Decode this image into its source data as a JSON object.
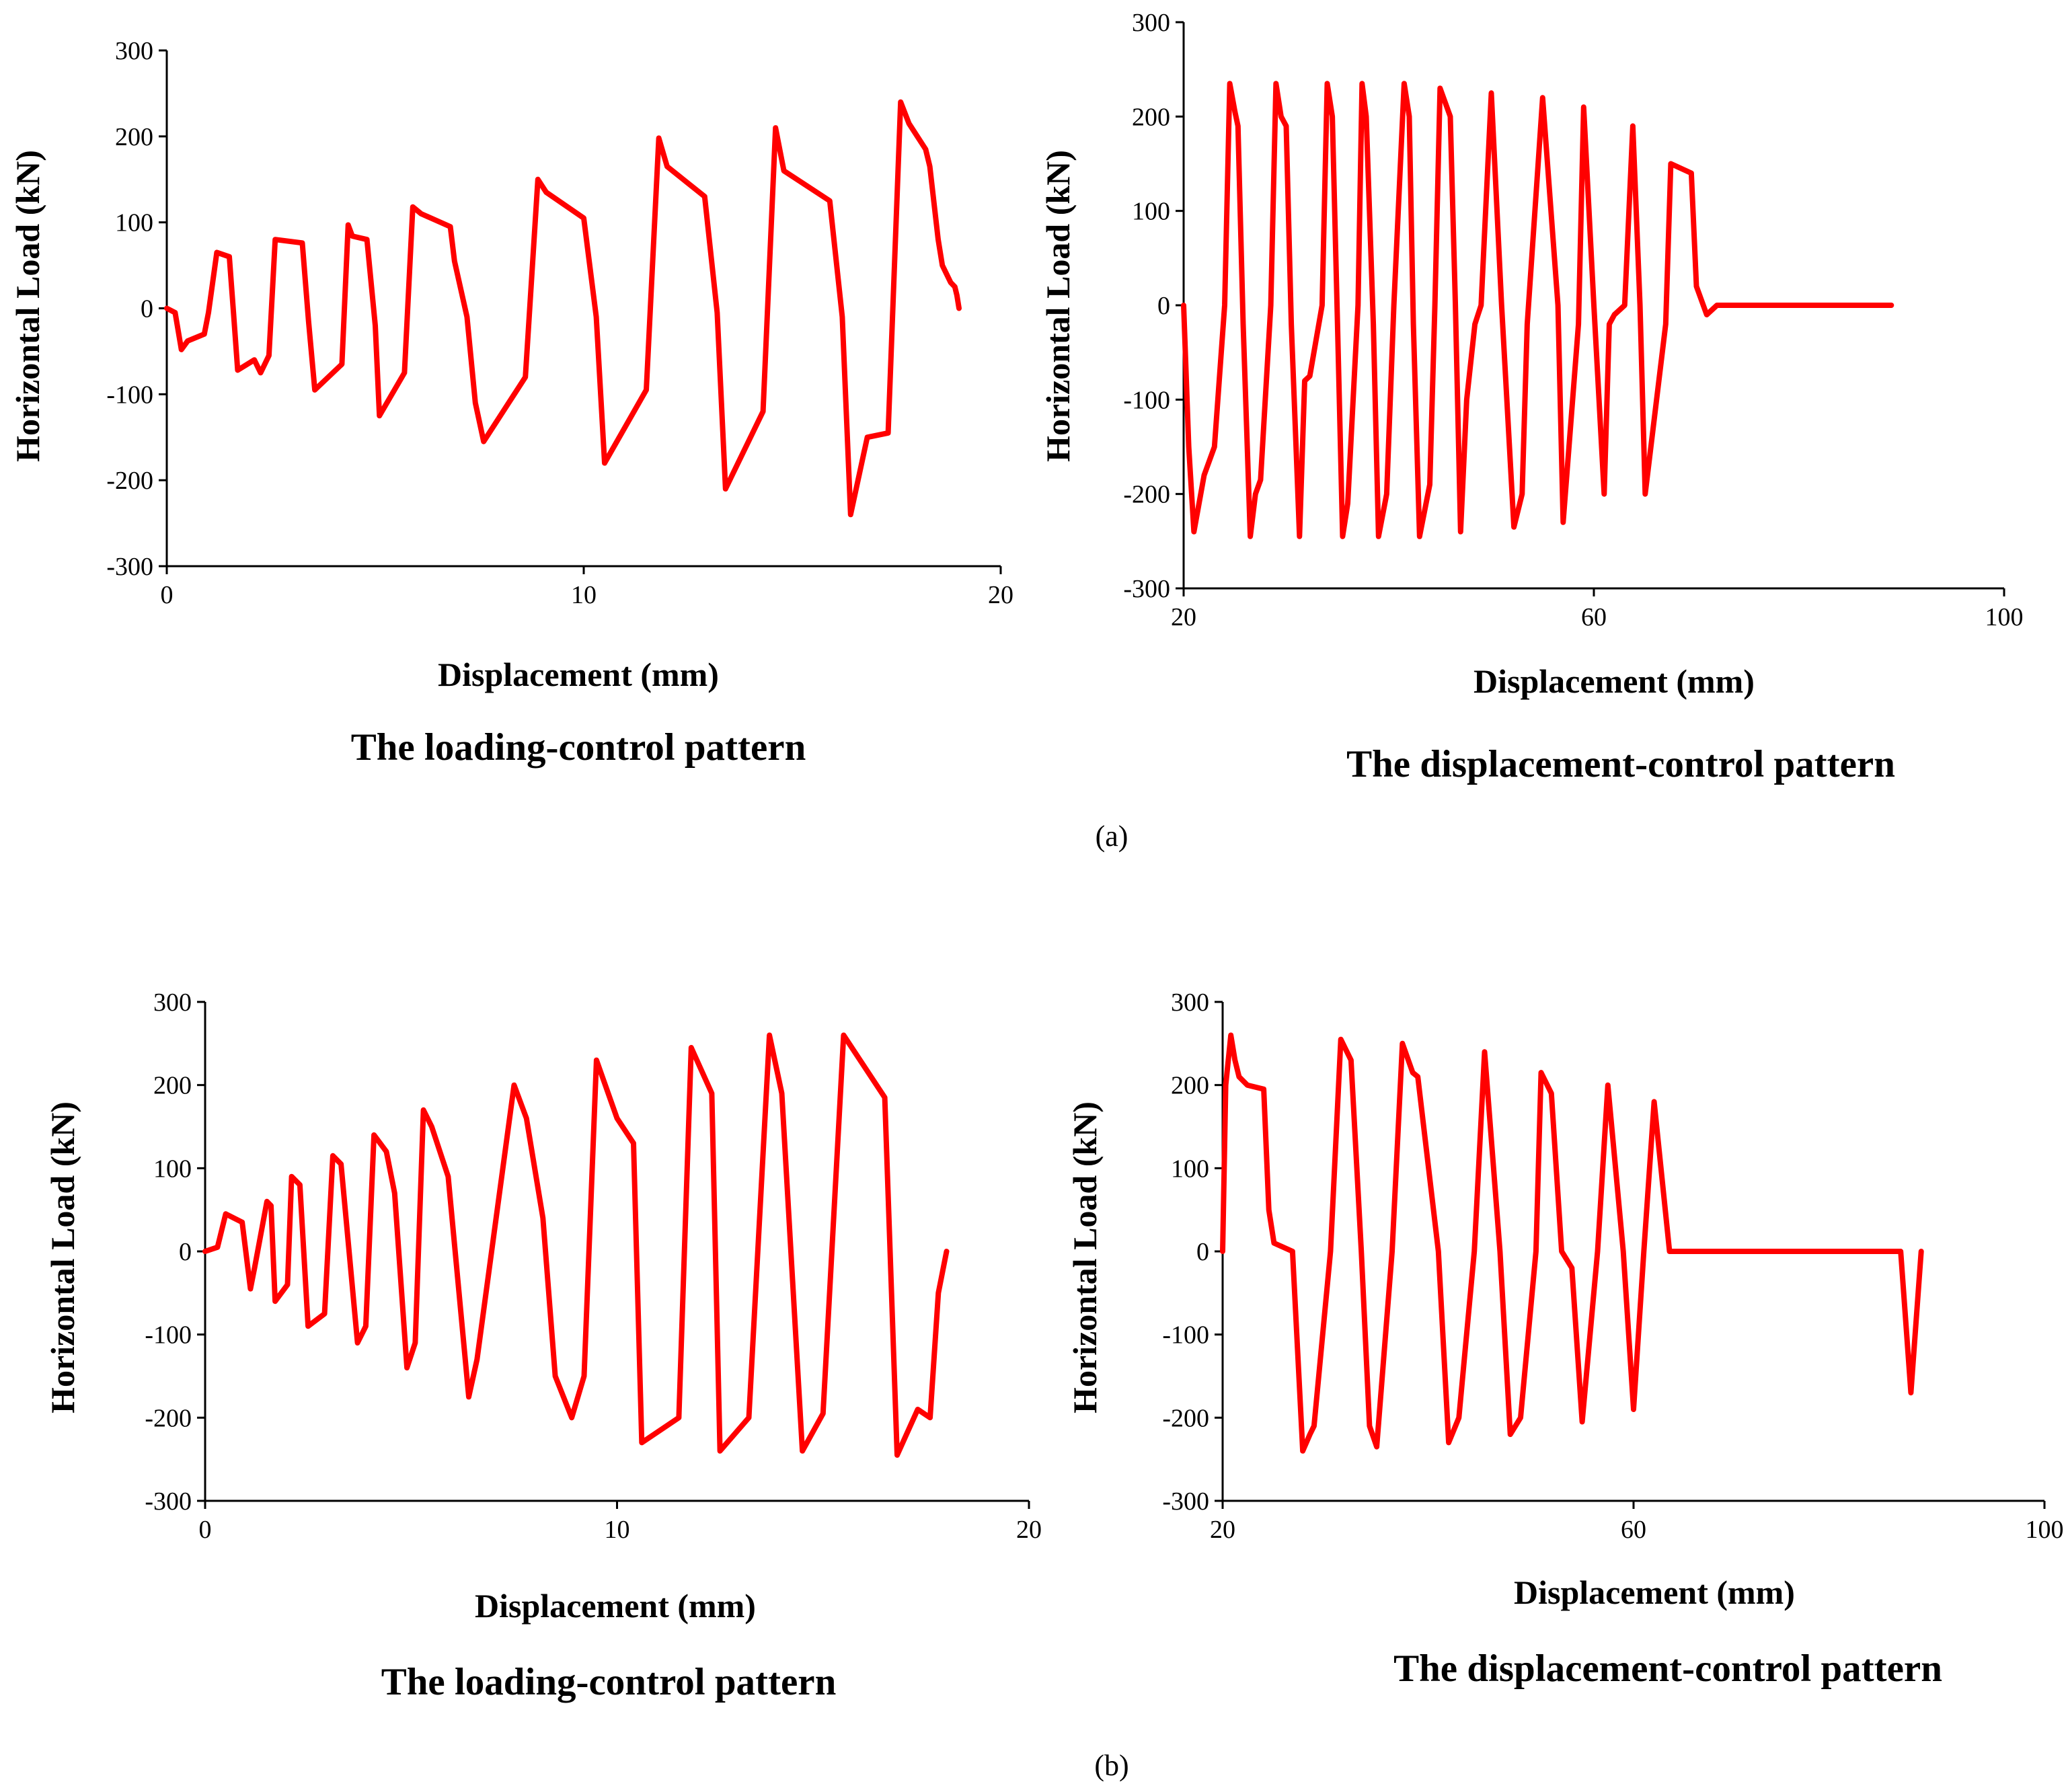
{
  "colors": {
    "series": "#ff0000",
    "axis": "#000000"
  },
  "sublabels": [
    "(a)",
    "(b)"
  ],
  "chart_data": [
    {
      "type": "line",
      "panel": "a-left",
      "caption": "The loading-control pattern",
      "xlabel": "Displacement (mm)",
      "ylabel": "Horizontal Load (kN)",
      "xlim": [
        0,
        20
      ],
      "ylim": [
        -300,
        300
      ],
      "xticks": [
        "0",
        "10",
        "20"
      ],
      "yticks": [
        "300",
        "200",
        "100",
        "0",
        "-100",
        "-200",
        "-300"
      ],
      "grid": false,
      "series": [
        {
          "name": "Horizontal Load",
          "x": [
            0,
            0.2,
            0.35,
            0.5,
            0.9,
            1.0,
            1.2,
            1.5,
            1.6,
            1.7,
            2.1,
            2.25,
            2.45,
            2.6,
            3.25,
            3.4,
            3.55,
            4.2,
            4.35,
            4.45,
            4.8,
            5.0,
            5.1,
            5.7,
            5.9,
            6.1,
            6.8,
            6.9,
            7.2,
            7.4,
            7.6,
            8.6,
            8.9,
            9.1,
            10.0,
            10.3,
            10.5,
            11.5,
            11.8,
            12.0,
            12.9,
            13.2,
            13.4,
            14.3,
            14.6,
            14.8,
            15.9,
            16.2,
            16.4,
            16.8,
            17.3,
            17.6,
            17.8,
            18.2,
            18.3,
            18.5,
            18.6,
            18.7,
            18.8,
            18.9,
            18.95,
            19.0
          ],
          "y": [
            0,
            -5,
            -48,
            -38,
            -30,
            -5,
            65,
            60,
            -5,
            -72,
            -60,
            -75,
            -55,
            80,
            76,
            -15,
            -95,
            -65,
            97,
            84,
            80,
            -20,
            -125,
            -75,
            118,
            110,
            95,
            55,
            -10,
            -110,
            -155,
            -80,
            150,
            135,
            105,
            -10,
            -180,
            -95,
            198,
            165,
            130,
            -5,
            -210,
            -120,
            210,
            160,
            125,
            -10,
            -240,
            -150,
            -145,
            240,
            215,
            185,
            165,
            80,
            50,
            40,
            30,
            25,
            15,
            0
          ]
        }
      ]
    },
    {
      "type": "line",
      "panel": "a-right",
      "caption": "The displacement-control pattern",
      "xlabel": "Displacement (mm)",
      "ylabel": "Horizontal Load (kN)",
      "xlim": [
        20,
        100
      ],
      "ylim": [
        -300,
        300
      ],
      "xticks": [
        "20",
        "60",
        "100"
      ],
      "yticks": [
        "300",
        "200",
        "100",
        "0",
        "-100",
        "-200",
        "-300"
      ],
      "grid": false,
      "series": [
        {
          "name": "Horizontal Load",
          "x": [
            20.0,
            20.5,
            21.0,
            22.0,
            23.0,
            24.0,
            24.5,
            25.0,
            25.3,
            25.8,
            26.5,
            27.0,
            27.5,
            28.5,
            29.0,
            29.5,
            30.0,
            30.5,
            31.3,
            31.8,
            32.3,
            33.5,
            34.0,
            34.5,
            35.0,
            35.5,
            36.0,
            37.0,
            37.4,
            37.8,
            38.5,
            39.0,
            39.8,
            40.5,
            41.5,
            42.0,
            42.4,
            43.0,
            44.0,
            44.5,
            45.0,
            46.0,
            46.5,
            47.0,
            47.6,
            48.4,
            49.0,
            50.0,
            51.0,
            52.2,
            53.0,
            53.5,
            55.0,
            56.5,
            57.0,
            58.5,
            59.0,
            60.0,
            61.0,
            61.5,
            62.0,
            63.0,
            63.8,
            64.5,
            65.0,
            67.0,
            67.5,
            69.5,
            70.0,
            71.0,
            72.0,
            74.0,
            74.5,
            76.0,
            77.0,
            79.0,
            79.5,
            80.0,
            81.0,
            82.0,
            84.0,
            85.0,
            86.0,
            86.5,
            87.0,
            87.5,
            88.0,
            88.5,
            89.0,
            89.0
          ],
          "y": [
            0,
            -150,
            -240,
            -180,
            -150,
            0,
            235,
            205,
            190,
            -20,
            -245,
            -200,
            -185,
            0,
            235,
            200,
            190,
            -20,
            -245,
            -80,
            -75,
            0,
            235,
            200,
            -20,
            -245,
            -210,
            0,
            235,
            200,
            -20,
            -245,
            -200,
            0,
            235,
            200,
            -20,
            -245,
            -190,
            0,
            230,
            200,
            0,
            -240,
            -100,
            -20,
            0,
            225,
            0,
            -235,
            -200,
            -20,
            220,
            0,
            -230,
            -20,
            210,
            0,
            -200,
            -20,
            -10,
            0,
            190,
            0,
            -200,
            -20,
            150,
            140,
            20,
            -10,
            0,
            0,
            0,
            0,
            0,
            0,
            0,
            0,
            0,
            0,
            0,
            0,
            0,
            0,
            0,
            0,
            0,
            0,
            0,
            0
          ]
        }
      ]
    },
    {
      "type": "line",
      "panel": "b-left",
      "caption": "The loading-control pattern",
      "xlabel": "Displacement (mm)",
      "ylabel": "Horizontal Load (kN)",
      "xlim": [
        0,
        20
      ],
      "ylim": [
        -300,
        300
      ],
      "xticks": [
        "0",
        "10",
        "20"
      ],
      "yticks": [
        "300",
        "200",
        "100",
        "0",
        "-100",
        "-200",
        "-300"
      ],
      "grid": false,
      "series": [
        {
          "name": "Horizontal Load",
          "x": [
            0,
            0.3,
            0.5,
            0.9,
            1.1,
            1.2,
            1.5,
            1.6,
            1.7,
            2.0,
            2.1,
            2.3,
            2.5,
            2.9,
            3.1,
            3.3,
            3.7,
            3.9,
            4.1,
            4.4,
            4.6,
            4.9,
            5.1,
            5.3,
            5.5,
            5.9,
            6.4,
            6.6,
            7.5,
            7.8,
            8.2,
            8.5,
            8.9,
            9.2,
            9.5,
            10.0,
            10.4,
            10.6,
            11.5,
            11.8,
            12.3,
            12.5,
            13.2,
            13.7,
            14.0,
            14.5,
            15.0,
            15.5,
            16.5,
            16.8,
            17.3,
            17.6,
            17.8,
            18.0
          ],
          "y": [
            0,
            5,
            45,
            35,
            -45,
            -20,
            60,
            55,
            -60,
            -40,
            90,
            80,
            -90,
            -75,
            115,
            105,
            -110,
            -90,
            140,
            120,
            70,
            -140,
            -110,
            170,
            150,
            90,
            -175,
            -130,
            200,
            160,
            40,
            -150,
            -200,
            -150,
            230,
            160,
            130,
            -230,
            -200,
            245,
            190,
            -240,
            -200,
            260,
            190,
            -240,
            -195,
            260,
            185,
            -245,
            -190,
            -200,
            -50,
            0
          ]
        }
      ]
    },
    {
      "type": "line",
      "panel": "b-right",
      "caption": "The displacement-control pattern",
      "xlabel": "Displacement (mm)",
      "ylabel": "Horizontal Load (kN)",
      "xlim": [
        20,
        100
      ],
      "ylim": [
        -300,
        300
      ],
      "xticks": [
        "20",
        "60",
        "100"
      ],
      "yticks": [
        "300",
        "200",
        "100",
        "0",
        "-100",
        "-200",
        "-300"
      ],
      "grid": false,
      "series": [
        {
          "name": "Horizontal Load",
          "x": [
            20,
            20.3,
            20.8,
            21.2,
            21.6,
            22.4,
            24.0,
            24.5,
            25,
            26.8,
            27.8,
            28.5,
            28.9,
            30.5,
            31.5,
            32.5,
            33.5,
            34.3,
            35.0,
            36.5,
            37.5,
            38.5,
            39.0,
            41.0,
            42.0,
            43.0,
            44.5,
            45.5,
            47.0,
            48.0,
            49.0,
            50.5,
            51.0,
            52.0,
            53.0,
            54.0,
            55.0,
            56.5,
            57.5,
            59.0,
            60.0,
            61.0,
            62.0,
            63.5,
            65.0,
            66.0,
            67.5,
            69.0,
            70.0,
            71.0,
            72.0,
            73.5,
            74.5,
            75.5,
            77.0,
            78.5,
            80.0,
            81.5,
            82.0,
            84.0,
            85.0,
            86.0,
            87.0,
            88.0
          ],
          "y": [
            0,
            200,
            260,
            230,
            210,
            200,
            195,
            50,
            10,
            0,
            -240,
            -220,
            -210,
            0,
            255,
            230,
            0,
            -210,
            -235,
            0,
            250,
            215,
            210,
            0,
            -230,
            -200,
            0,
            240,
            0,
            -220,
            -200,
            0,
            215,
            190,
            0,
            -20,
            -205,
            0,
            200,
            0,
            -190,
            0,
            180,
            0,
            0,
            0,
            0,
            0,
            0,
            0,
            0,
            0,
            0,
            0,
            0,
            0,
            0,
            0,
            0,
            0,
            0,
            0,
            -170,
            0
          ]
        }
      ]
    }
  ]
}
